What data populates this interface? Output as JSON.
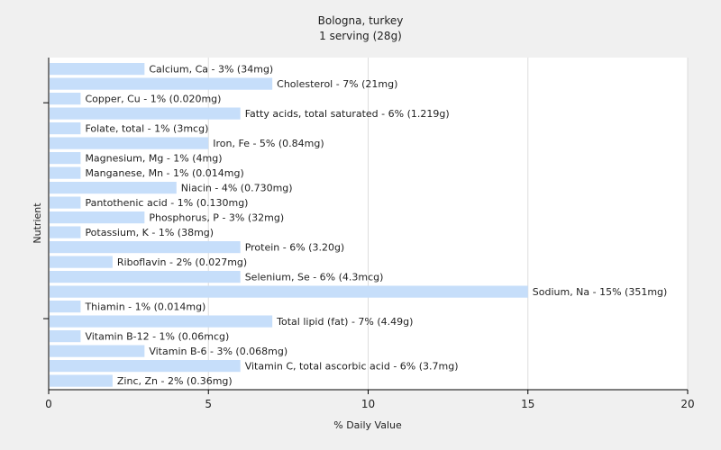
{
  "chart_data": {
    "type": "bar",
    "orientation": "horizontal",
    "title": "Bologna, turkey",
    "subtitle": "1 serving (28g)",
    "xlabel": "% Daily Value",
    "ylabel": "Nutrient",
    "xlim": [
      0,
      20
    ],
    "xticks": [
      0,
      5,
      10,
      15,
      20
    ],
    "grid": true,
    "bar_color": "#c6defa",
    "categories": [
      "Calcium, Ca",
      "Cholesterol",
      "Copper, Cu",
      "Fatty acids, total saturated",
      "Folate, total",
      "Iron, Fe",
      "Magnesium, Mg",
      "Manganese, Mn",
      "Niacin",
      "Pantothenic acid",
      "Phosphorus, P",
      "Potassium, K",
      "Protein",
      "Riboflavin",
      "Selenium, Se",
      "Sodium, Na",
      "Thiamin",
      "Total lipid (fat)",
      "Vitamin B-12",
      "Vitamin B-6",
      "Vitamin C, total ascorbic acid",
      "Zinc, Zn"
    ],
    "values": [
      3,
      7,
      1,
      6,
      1,
      5,
      1,
      1,
      4,
      1,
      3,
      1,
      6,
      2,
      6,
      15,
      1,
      7,
      1,
      3,
      6,
      2
    ],
    "labels": [
      "Calcium, Ca - 3% (34mg)",
      "Cholesterol - 7% (21mg)",
      "Copper, Cu - 1% (0.020mg)",
      "Fatty acids, total saturated - 6% (1.219g)",
      "Folate, total - 1% (3mcg)",
      "Iron, Fe - 5% (0.84mg)",
      "Magnesium, Mg - 1% (4mg)",
      "Manganese, Mn - 1% (0.014mg)",
      "Niacin - 4% (0.730mg)",
      "Pantothenic acid - 1% (0.130mg)",
      "Phosphorus, P - 3% (32mg)",
      "Potassium, K - 1% (38mg)",
      "Protein - 6% (3.20g)",
      "Riboflavin - 2% (0.027mg)",
      "Selenium, Se - 6% (4.3mcg)",
      "Sodium, Na - 15% (351mg)",
      "Thiamin - 1% (0.014mg)",
      "Total lipid (fat) - 7% (4.49g)",
      "Vitamin B-12 - 1% (0.06mcg)",
      "Vitamin B-6 - 3% (0.068mg)",
      "Vitamin C, total ascorbic acid - 6% (3.7mg)",
      "Zinc, Zn - 2% (0.36mg)"
    ]
  }
}
